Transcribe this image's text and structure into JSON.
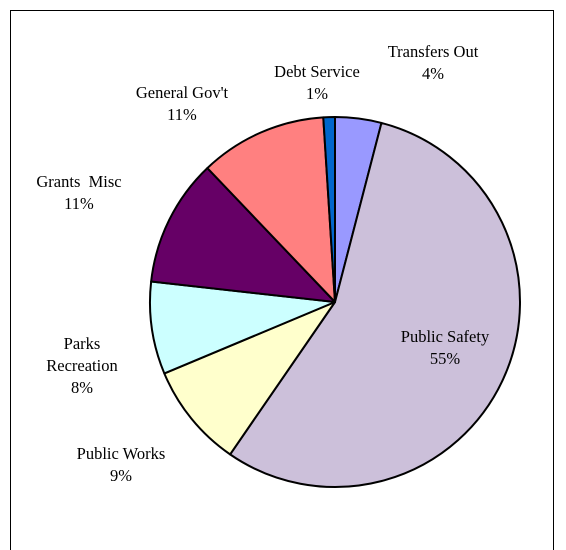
{
  "chart_data": {
    "type": "pie",
    "title": "",
    "start_angle_deg": 0,
    "direction": "clockwise",
    "slices": [
      {
        "label": "Transfers Out",
        "percent_label": "4%",
        "value": 4,
        "color": "#9999ff"
      },
      {
        "label": "Public Safety",
        "percent_label": "55%",
        "value": 55,
        "color": "#ccc0da"
      },
      {
        "label": "Public Works",
        "percent_label": "9%",
        "value": 9,
        "color": "#ffffcc"
      },
      {
        "label": "Parks",
        "label_line2": "Recreation",
        "percent_label": "8%",
        "value": 8,
        "color": "#ccffff"
      },
      {
        "label": "Grants  Misc",
        "percent_label": "11%",
        "value": 11,
        "color": "#660066"
      },
      {
        "label": "General Gov't",
        "percent_label": "11%",
        "value": 11,
        "color": "#ff8080"
      },
      {
        "label": "Debt Service",
        "percent_label": "1%",
        "value": 1,
        "color": "#0066cc"
      }
    ],
    "legend": "none",
    "data_labels": "category name and percentage"
  }
}
